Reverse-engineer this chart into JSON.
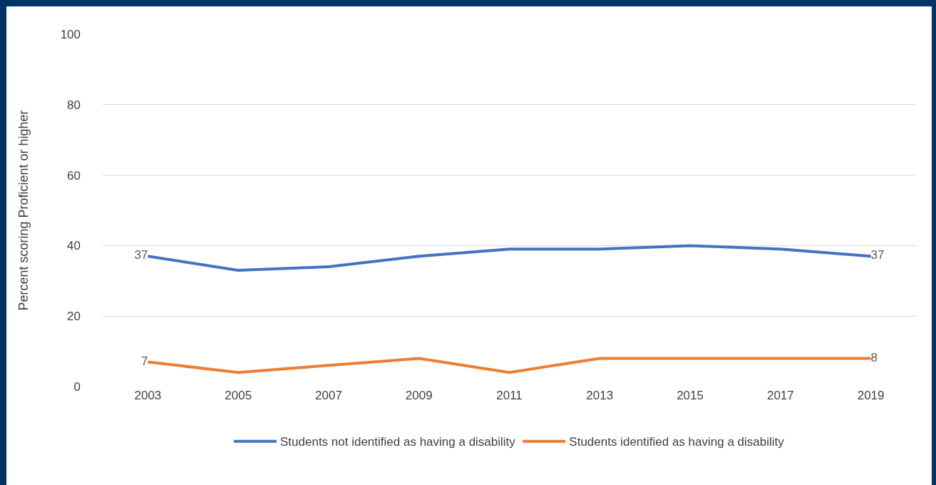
{
  "chart_data": {
    "type": "line",
    "ylabel": "Percent scoring Proficient or higher",
    "categories": [
      "2003",
      "2005",
      "2007",
      "2009",
      "2011",
      "2013",
      "2015",
      "2017",
      "2019"
    ],
    "series": [
      {
        "name": "Students not identified as having a disability",
        "color": "#4472c4",
        "values": [
          37,
          33,
          34,
          37,
          39,
          39,
          40,
          39,
          37
        ],
        "value_labels": [
          "37",
          null,
          null,
          null,
          null,
          null,
          null,
          null,
          "37"
        ]
      },
      {
        "name": "Students identified as having a disability",
        "color": "#ed7d31",
        "values": [
          7,
          4,
          6,
          8,
          4,
          8,
          8,
          8,
          8
        ],
        "value_labels": [
          "7",
          null,
          null,
          null,
          null,
          null,
          null,
          null,
          "8"
        ]
      }
    ],
    "ylim": [
      0,
      100
    ],
    "yticks": [
      0,
      20,
      40,
      60,
      80,
      100
    ],
    "grid": "y",
    "legend": "bottom",
    "marker": "none",
    "line_style": "solid"
  }
}
